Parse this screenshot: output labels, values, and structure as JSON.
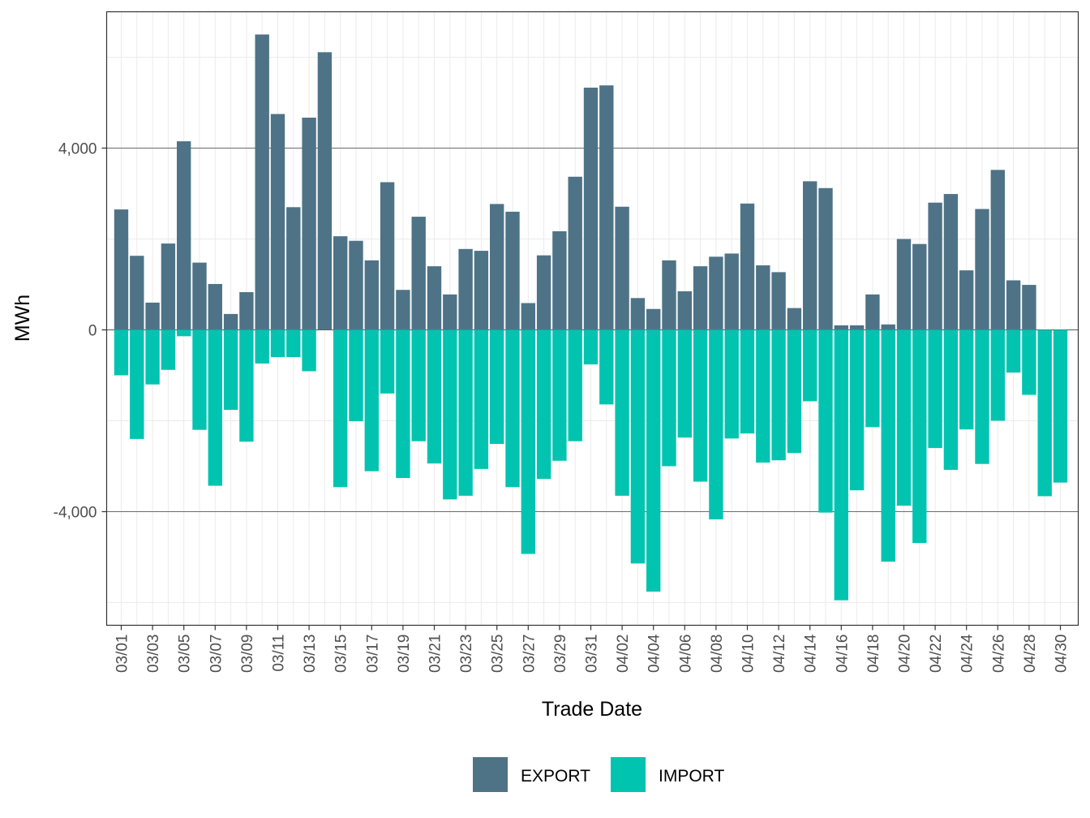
{
  "chart_data": {
    "type": "bar",
    "stacked": "diverging",
    "xlabel": "Trade Date",
    "ylabel": "MWh",
    "ylim": [
      -6500,
      7000
    ],
    "yticks": [
      -4000,
      0,
      4000
    ],
    "ytick_labels": [
      "-4,000",
      "0",
      "4,000"
    ],
    "colors": {
      "EXPORT": "#4e7387",
      "IMPORT": "#00c4b0"
    },
    "legend_position": "bottom",
    "categories": [
      "03/01",
      "03/02",
      "03/03",
      "03/04",
      "03/05",
      "03/06",
      "03/07",
      "03/08",
      "03/09",
      "03/10",
      "03/11",
      "03/12",
      "03/13",
      "03/14",
      "03/15",
      "03/16",
      "03/17",
      "03/18",
      "03/19",
      "03/20",
      "03/21",
      "03/22",
      "03/23",
      "03/24",
      "03/25",
      "03/26",
      "03/27",
      "03/28",
      "03/29",
      "03/30",
      "03/31",
      "04/01",
      "04/02",
      "04/03",
      "04/04",
      "04/05",
      "04/06",
      "04/07",
      "04/08",
      "04/09",
      "04/10",
      "04/11",
      "04/12",
      "04/13",
      "04/14",
      "04/15",
      "04/16",
      "04/17",
      "04/18",
      "04/19",
      "04/20",
      "04/21",
      "04/22",
      "04/23",
      "04/24",
      "04/25",
      "04/26",
      "04/27",
      "04/28",
      "04/29",
      "04/30"
    ],
    "xtick_labels": [
      "03/01",
      "03/03",
      "03/05",
      "03/07",
      "03/09",
      "03/11",
      "03/13",
      "03/15",
      "03/17",
      "03/19",
      "03/21",
      "03/23",
      "03/25",
      "03/27",
      "03/29",
      "03/31",
      "04/02",
      "04/04",
      "04/06",
      "04/08",
      "04/10",
      "04/12",
      "04/14",
      "04/16",
      "04/18",
      "04/20",
      "04/22",
      "04/24",
      "04/26",
      "04/28",
      "04/30"
    ],
    "series": [
      {
        "name": "EXPORT",
        "values": [
          2650,
          1630,
          600,
          1900,
          4150,
          1480,
          1010,
          350,
          830,
          6500,
          4750,
          2700,
          4670,
          6110,
          2060,
          1960,
          1530,
          3250,
          880,
          2490,
          1400,
          780,
          1780,
          1740,
          2770,
          2600,
          590,
          1640,
          2170,
          3370,
          5330,
          5380,
          2710,
          700,
          460,
          1530,
          850,
          1400,
          1610,
          1680,
          2780,
          1420,
          1270,
          480,
          3270,
          3120,
          100,
          100,
          780,
          120,
          2000,
          1890,
          2800,
          2990,
          1310,
          2660,
          3520,
          1090,
          990,
          0,
          0
        ]
      },
      {
        "name": "IMPORT",
        "values": [
          -1000,
          -2400,
          -1200,
          -880,
          -140,
          -2200,
          -3430,
          -1760,
          -2460,
          -740,
          -600,
          -600,
          -910,
          0,
          -3460,
          -2010,
          -3110,
          -1400,
          -3260,
          -2450,
          -2940,
          -3730,
          -3650,
          -3060,
          -2510,
          -3460,
          -4930,
          -3280,
          -2880,
          -2450,
          -760,
          -1640,
          -3650,
          -5140,
          -5760,
          -3000,
          -2370,
          -3340,
          -4170,
          -2390,
          -2280,
          -2920,
          -2870,
          -2710,
          -1570,
          -4020,
          -5950,
          -3530,
          -2140,
          -5100,
          -3870,
          -4690,
          -2600,
          -3080,
          -2190,
          -2950,
          -2000,
          -940,
          -1430,
          -3660,
          -3360
        ]
      }
    ]
  }
}
